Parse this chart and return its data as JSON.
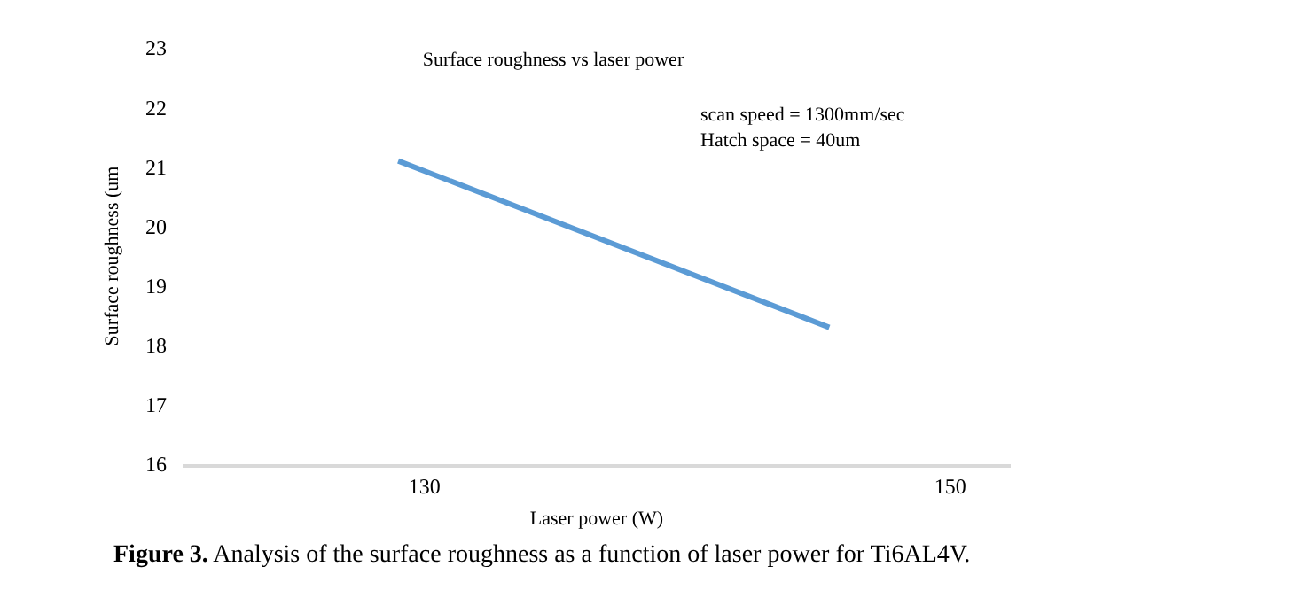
{
  "chart_data": {
    "type": "line",
    "title": "Surface roughness vs laser power",
    "xlabel": "Laser power (W)",
    "ylabel": "Surface roughness (um",
    "x": [
      129,
      145.4
    ],
    "series": [
      {
        "color": "#5b9bd5",
        "values": [
          21.1,
          18.3
        ]
      }
    ],
    "xlim": [
      120.8,
      152.3
    ],
    "xticks": [
      130,
      150
    ],
    "ylim": [
      16,
      23
    ],
    "yticks": [
      16,
      17,
      18,
      19,
      20,
      21,
      22,
      23
    ],
    "legend": false,
    "marker": "none",
    "line_style": "solid",
    "annotations": [
      "scan speed = 1300mm/sec",
      "Hatch space = 40um",
      "Figure 3.",
      "Analysis of the surface roughness as a function of laser power for Ti6AL4V."
    ]
  }
}
